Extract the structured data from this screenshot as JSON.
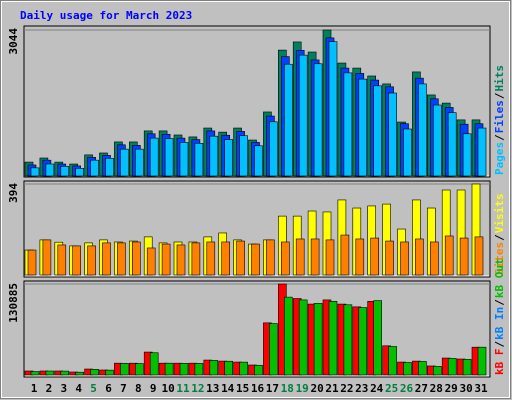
{
  "chart_data": [
    {
      "type": "bar",
      "title": "Daily usage for March 2023",
      "ylim": [
        0,
        3044
      ],
      "yticks": [
        3044
      ],
      "legend_order": "reverse",
      "legend_separator": "/",
      "series": [
        {
          "name": "Hits",
          "color": "#00805c",
          "values": [
            290,
            375,
            290,
            250,
            440,
            480,
            710,
            710,
            940,
            940,
            855,
            815,
            1000,
            915,
            1000,
            750,
            1335,
            2625,
            2795,
            2585,
            3044,
            2355,
            2250,
            2085,
            1920,
            1125,
            2170,
            1690,
            1520,
            1170,
            1170
          ]
        },
        {
          "name": "Files",
          "color": "#0040ff",
          "values": [
            230,
            330,
            250,
            210,
            390,
            430,
            650,
            640,
            880,
            870,
            790,
            760,
            940,
            850,
            930,
            700,
            1250,
            2490,
            2620,
            2420,
            2880,
            2250,
            2140,
            2000,
            1860,
            1090,
            2040,
            1610,
            1430,
            1080,
            1090
          ]
        },
        {
          "name": "Pages",
          "color": "#00c0ff",
          "values": [
            170,
            250,
            200,
            160,
            330,
            370,
            560,
            560,
            790,
            780,
            700,
            680,
            830,
            760,
            840,
            630,
            1130,
            2330,
            2520,
            2340,
            2800,
            2150,
            2020,
            1880,
            1730,
            980,
            1920,
            1480,
            1320,
            880,
            1000
          ]
        }
      ]
    },
    {
      "type": "bar",
      "ylim": [
        0,
        394
      ],
      "yticks": [
        394
      ],
      "legend_order": "reverse",
      "legend_separator": "/",
      "series": [
        {
          "name": "Visits",
          "color": "#ffff00",
          "values": [
            108,
            152,
            142,
            126,
            139,
            152,
            143,
            147,
            165,
            139,
            143,
            143,
            165,
            182,
            152,
            134,
            152,
            255,
            255,
            277,
            273,
            325,
            290,
            299,
            307,
            199,
            325,
            290,
            368,
            368,
            394
          ]
        },
        {
          "name": "Sites",
          "color": "#ff8000",
          "values": [
            108,
            152,
            130,
            126,
            126,
            139,
            139,
            143,
            117,
            134,
            130,
            139,
            143,
            143,
            147,
            134,
            152,
            143,
            156,
            156,
            152,
            173,
            156,
            160,
            147,
            143,
            156,
            143,
            169,
            160,
            165
          ]
        }
      ]
    },
    {
      "type": "bar",
      "ylim": [
        0,
        130885
      ],
      "yticks": [
        130885
      ],
      "legend_order": "forward",
      "legend_separator": "/",
      "categories": [
        "1",
        "2",
        "3",
        "4",
        "5",
        "6",
        "7",
        "8",
        "9",
        "10",
        "11",
        "12",
        "13",
        "14",
        "15",
        "16",
        "17",
        "18",
        "19",
        "20",
        "21",
        "22",
        "23",
        "24",
        "25",
        "26",
        "27",
        "28",
        "29",
        "30",
        "31"
      ],
      "category_colors": [
        "#000000",
        "#000000",
        "#000000",
        "#000000",
        "#008040",
        "#000000",
        "#000000",
        "#000000",
        "#000000",
        "#000000",
        "#008040",
        "#008040",
        "#000000",
        "#000000",
        "#000000",
        "#000000",
        "#000000",
        "#008040",
        "#008040",
        "#000000",
        "#000000",
        "#000000",
        "#000000",
        "#000000",
        "#008040",
        "#008040",
        "#000000",
        "#000000",
        "#000000",
        "#000000",
        "#000000"
      ],
      "series": [
        {
          "name": "kB F",
          "color": "#ff0000",
          "values": [
            5750,
            5750,
            5750,
            4300,
            8600,
            7200,
            17000,
            17000,
            33000,
            17000,
            17000,
            17000,
            21500,
            20000,
            18600,
            14400,
            75000,
            130885,
            110000,
            102000,
            108000,
            102000,
            98000,
            106000,
            42000,
            18600,
            20000,
            13000,
            24400,
            23000,
            40000
          ]
        },
        {
          "name": "kB In",
          "color": "#0080ff",
          "values": [
            0,
            0,
            0,
            0,
            0,
            0,
            0,
            0,
            0,
            0,
            0,
            0,
            0,
            0,
            0,
            0,
            0,
            0,
            0,
            0,
            0,
            0,
            0,
            0,
            0,
            0,
            0,
            0,
            0,
            0,
            0
          ]
        },
        {
          "name": "kB Out",
          "color": "#00c000",
          "values": [
            5000,
            5700,
            5600,
            4000,
            8200,
            7000,
            16800,
            16500,
            32000,
            17000,
            16800,
            16700,
            21000,
            19800,
            18500,
            14000,
            74000,
            112000,
            108000,
            103000,
            106000,
            101000,
            97000,
            107000,
            41000,
            18000,
            19500,
            12500,
            24000,
            22500,
            40000
          ]
        }
      ]
    }
  ]
}
